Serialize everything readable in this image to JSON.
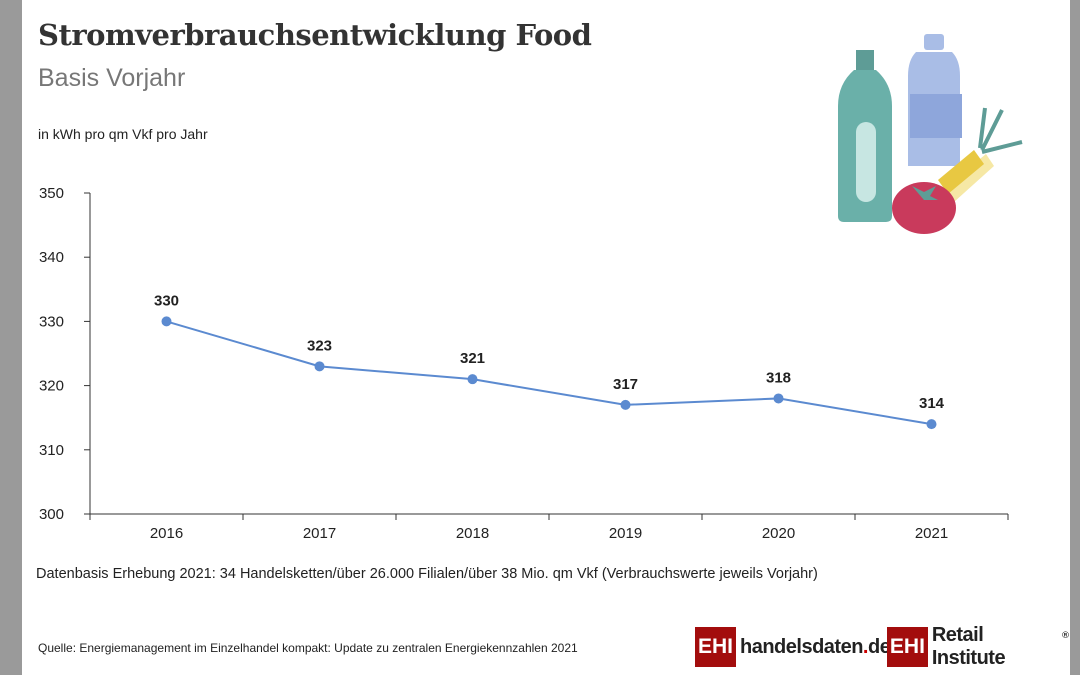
{
  "title": "Stromverbrauchsentwicklung Food",
  "subtitle": "Basis Vorjahr",
  "unit_label": "in kWh pro qm Vkf pro Jahr",
  "note": "Datenbasis Erhebung 2021: 34 Handelsketten/über 26.000 Filialen/über 38 Mio. qm Vkf (Verbrauchswerte jeweils Vorjahr)",
  "source": "Quelle: Energiemanagement im Einzelhandel kompakt: Update zu zentralen Energiekennzahlen 2021",
  "logos": {
    "ehi": "EHI",
    "handelsdaten": "handelsdaten",
    "handelsdaten_dot": ".",
    "handelsdaten_tld": "de",
    "retail": "Retail Institute",
    "reg": "®"
  },
  "colors": {
    "line": "#5b8ad0",
    "brand": "#a30d0d"
  },
  "chart_data": {
    "type": "line",
    "title": "Stromverbrauchsentwicklung Food",
    "subtitle": "Basis Vorjahr",
    "ylabel": "in kWh pro qm Vkf pro Jahr",
    "categories": [
      "2016",
      "2017",
      "2018",
      "2019",
      "2020",
      "2021"
    ],
    "values": [
      330,
      323,
      321,
      317,
      318,
      314
    ],
    "ylim": [
      300,
      350
    ],
    "yticks": [
      300,
      310,
      320,
      330,
      340,
      350
    ],
    "grid": false,
    "data_labels": true
  }
}
